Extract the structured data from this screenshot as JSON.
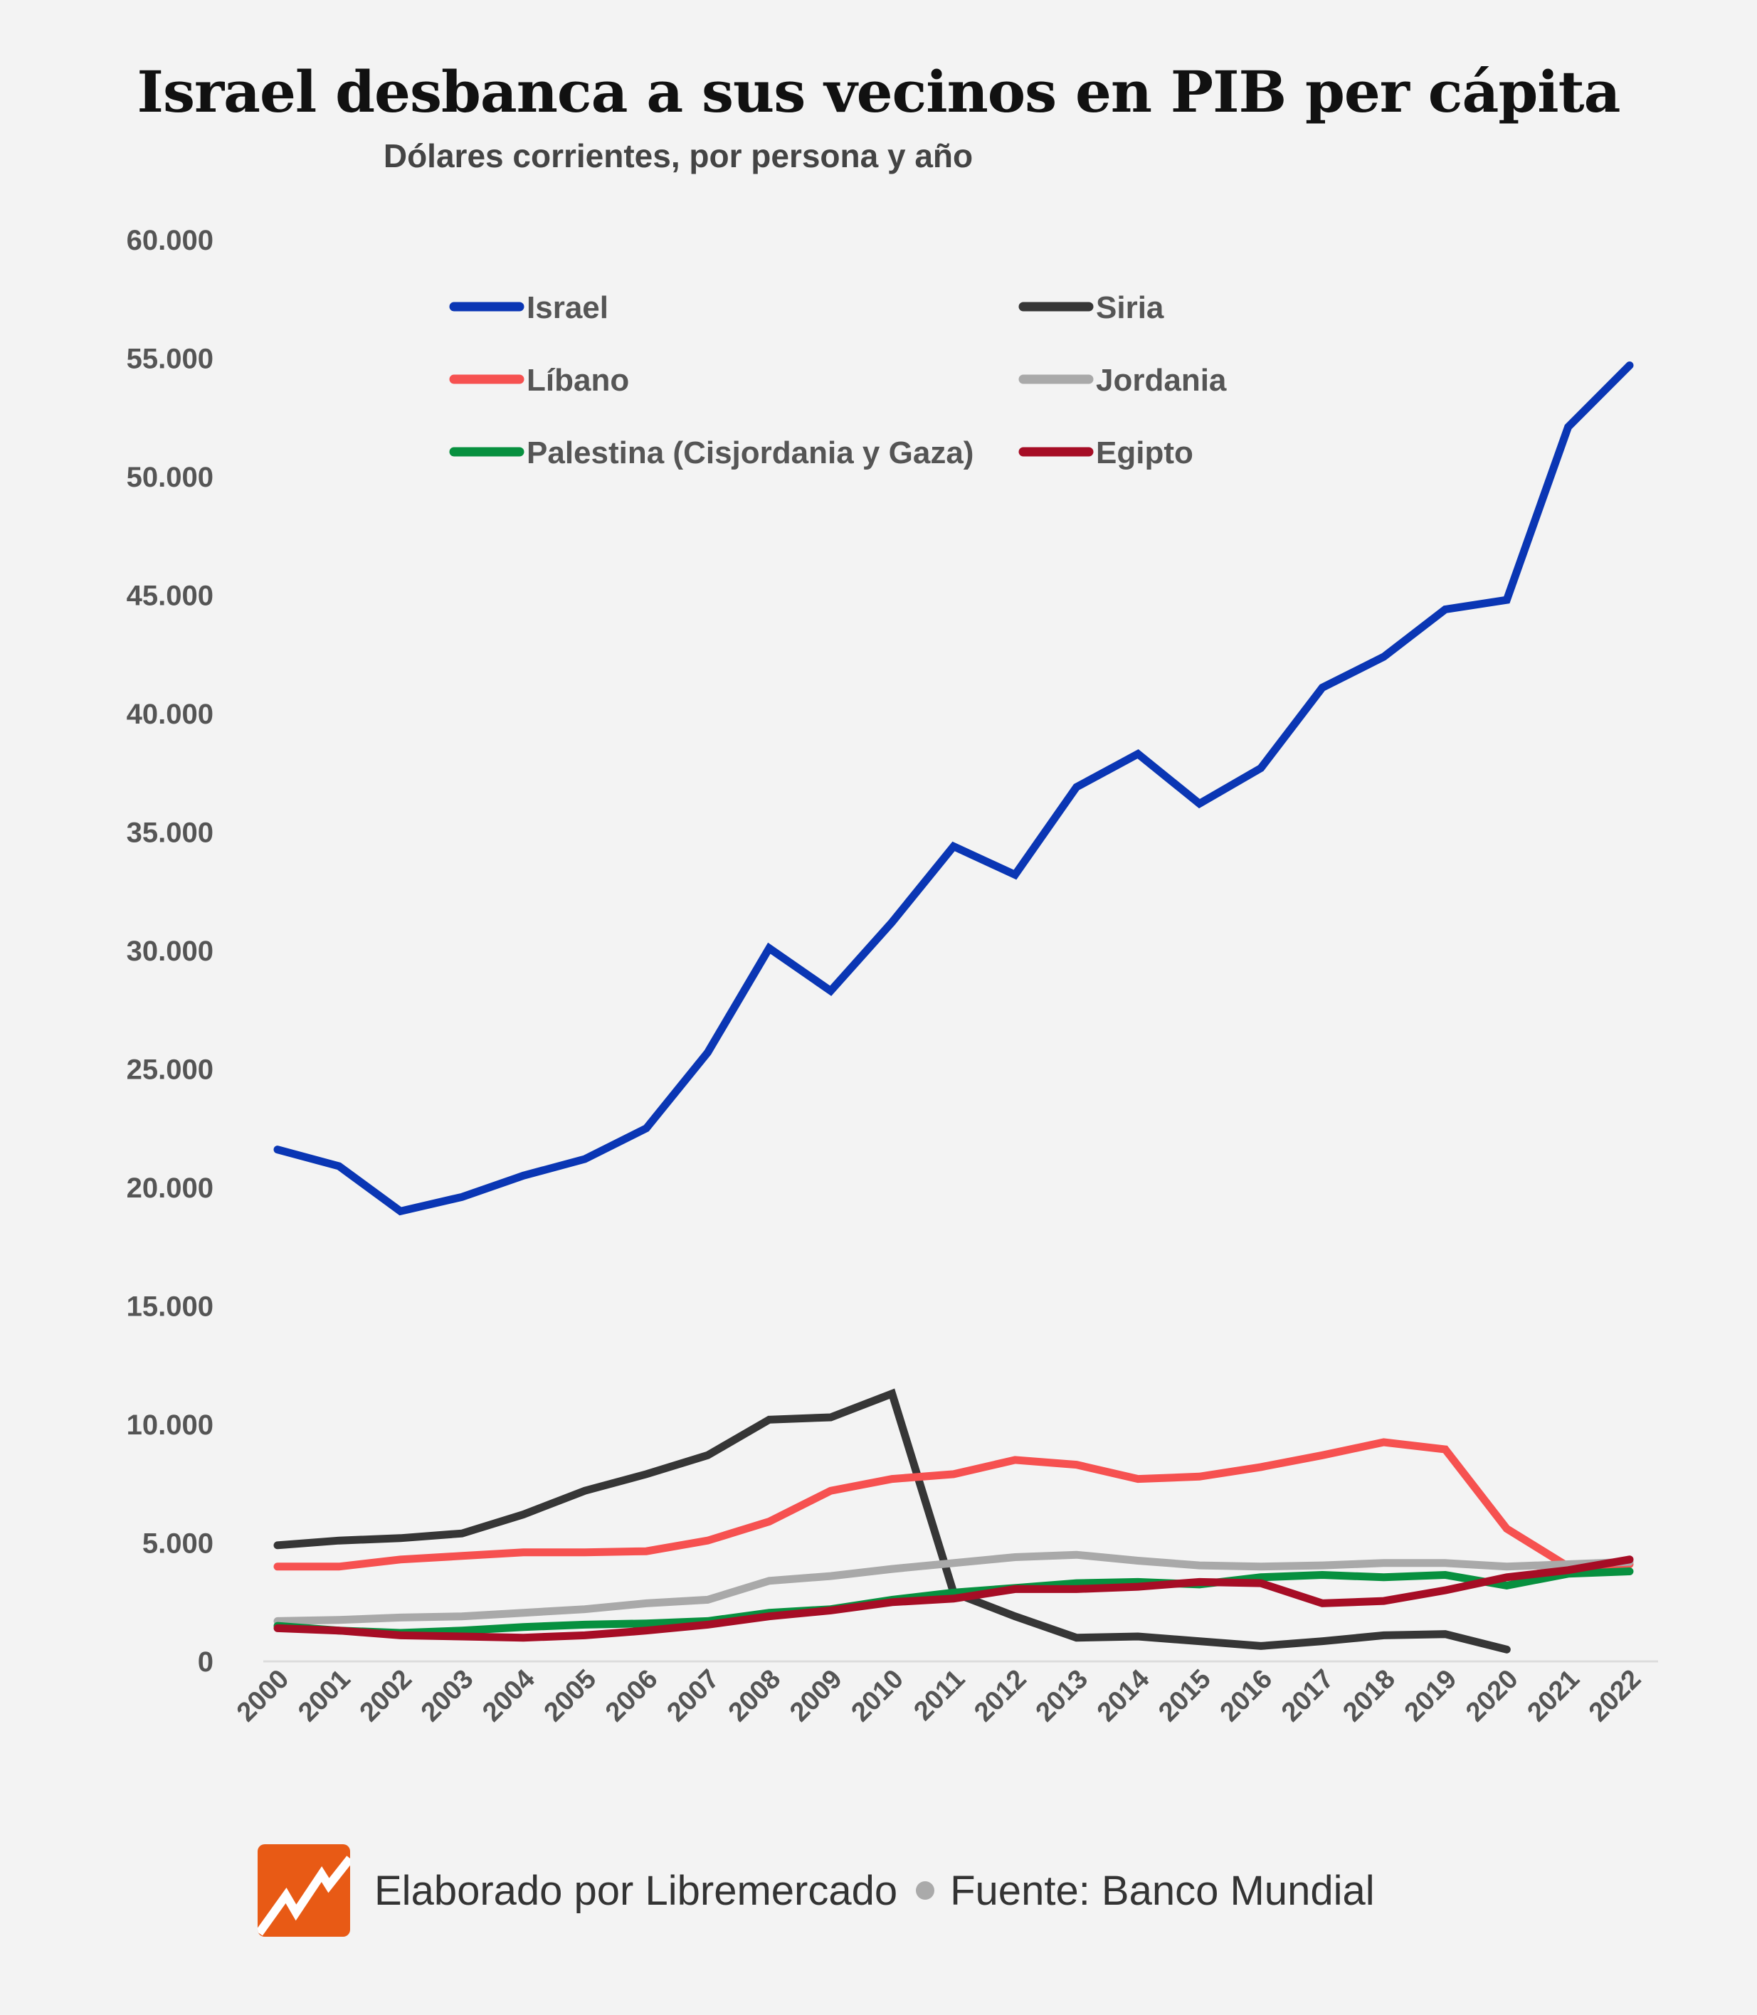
{
  "title": "Israel desbanca a sus vecinos en PIB per cápita",
  "subtitle": "Dólares corrientes, por persona y año",
  "footer": {
    "credit": "Elaborado por Libremercado",
    "source": "Fuente: Banco Mundial",
    "logo_icon": "libremercado-logo-icon"
  },
  "chart_data": {
    "type": "line",
    "title": "Israel desbanca a sus vecinos en PIB per cápita",
    "subtitle": "Dólares corrientes, por persona y año",
    "xlabel": "",
    "ylabel": "",
    "ylim": [
      0,
      60000
    ],
    "yticks": [
      0,
      5000,
      10000,
      15000,
      20000,
      25000,
      30000,
      35000,
      40000,
      45000,
      50000,
      55000,
      60000
    ],
    "ytick_labels": [
      "0",
      "5.000",
      "10.000",
      "15.000",
      "20.000",
      "25.000",
      "30.000",
      "35.000",
      "40.000",
      "45.000",
      "50.000",
      "55.000",
      "60.000"
    ],
    "grid": false,
    "legend_position": "top",
    "categories": [
      "2000",
      "2001",
      "2002",
      "2003",
      "2004",
      "2005",
      "2006",
      "2007",
      "2008",
      "2009",
      "2010",
      "2011",
      "2012",
      "2013",
      "2014",
      "2015",
      "2016",
      "2017",
      "2018",
      "2019",
      "2020",
      "2021",
      "2022"
    ],
    "series": [
      {
        "name": "Israel",
        "color": "#0a36b4",
        "values": [
          21600,
          20900,
          19000,
          19600,
          20500,
          21200,
          22500,
          25700,
          30100,
          28300,
          31200,
          34400,
          33200,
          36900,
          38300,
          36200,
          37700,
          41100,
          42400,
          44400,
          44800,
          52100,
          54700
        ]
      },
      {
        "name": "Siria",
        "color": "#363636",
        "values": [
          4900,
          5100,
          5200,
          5400,
          6200,
          7200,
          7900,
          8700,
          10200,
          10300,
          11300,
          2900,
          1900,
          1000,
          1050,
          850,
          650,
          850,
          1100,
          1150,
          500,
          null,
          null
        ]
      },
      {
        "name": "Líbano",
        "color": "#f65150",
        "values": [
          4000,
          4000,
          4300,
          4450,
          4600,
          4600,
          4650,
          5100,
          5900,
          7200,
          7700,
          7900,
          8500,
          8300,
          7700,
          7800,
          8200,
          8700,
          9250,
          8950,
          5600,
          4000,
          4100
        ]
      },
      {
        "name": "Jordania",
        "color": "#a9a9a9",
        "values": [
          1700,
          1750,
          1850,
          1900,
          2050,
          2200,
          2450,
          2600,
          3400,
          3600,
          3900,
          4150,
          4400,
          4500,
          4250,
          4050,
          4000,
          4050,
          4150,
          4150,
          4000,
          4100,
          4200
        ]
      },
      {
        "name": "Palestina (Cisjordania y Gaza)",
        "color": "#07903f",
        "values": [
          1500,
          1300,
          1200,
          1300,
          1450,
          1550,
          1600,
          1700,
          2050,
          2200,
          2600,
          2900,
          3100,
          3300,
          3350,
          3250,
          3550,
          3650,
          3550,
          3650,
          3200,
          3700,
          3800
        ]
      },
      {
        "name": "Egipto",
        "color": "#a60d25",
        "values": [
          1400,
          1300,
          1100,
          1050,
          1000,
          1100,
          1300,
          1550,
          1900,
          2150,
          2500,
          2650,
          3050,
          3050,
          3150,
          3350,
          3300,
          2450,
          2550,
          3000,
          3550,
          3850,
          4300
        ]
      }
    ]
  }
}
